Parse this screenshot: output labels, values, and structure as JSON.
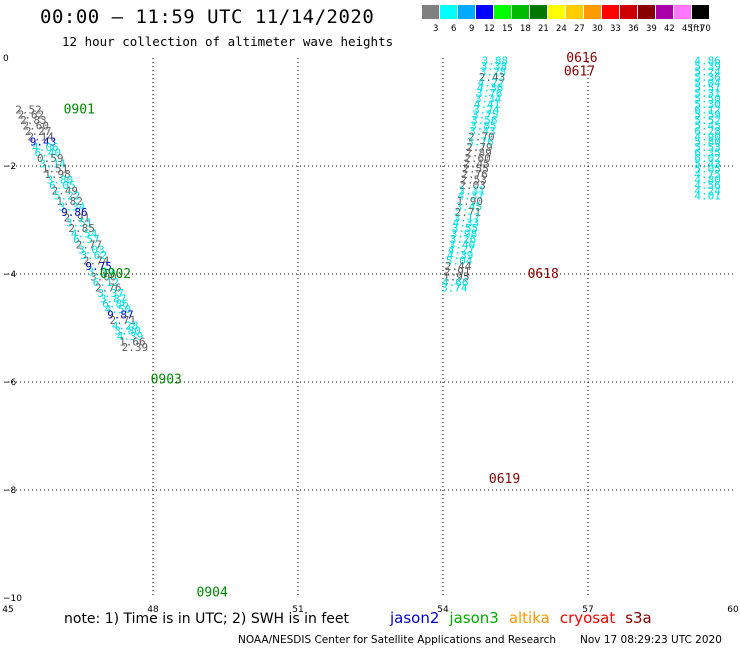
{
  "header": {
    "title": "00:00 – 11:59 UTC 11/14/2020",
    "subtitle": "12 hour collection of altimeter wave heights"
  },
  "colorbar": {
    "unit": "(ft)",
    "stops": [
      {
        "label": "3",
        "color": "#808080"
      },
      {
        "label": "6",
        "color": "#00ffff"
      },
      {
        "label": "9",
        "color": "#00aaff"
      },
      {
        "label": "12",
        "color": "#0000ff"
      },
      {
        "label": "15",
        "color": "#00ff00"
      },
      {
        "label": "18",
        "color": "#00bb00"
      },
      {
        "label": "21",
        "color": "#007700"
      },
      {
        "label": "24",
        "color": "#ffff00"
      },
      {
        "label": "27",
        "color": "#ffcc00"
      },
      {
        "label": "30",
        "color": "#ff9900"
      },
      {
        "label": "33",
        "color": "#ff0000"
      },
      {
        "label": "36",
        "color": "#cc0000"
      },
      {
        "label": "39",
        "color": "#880000"
      },
      {
        "label": "42",
        "color": "#aa00aa"
      },
      {
        "label": "45",
        "color": "#ff77ff"
      },
      {
        "label": "70",
        "color": "#000000"
      }
    ]
  },
  "footer": {
    "note": "note:  1) Time is in UTC;  2) SWH is in feet",
    "satellites": [
      {
        "name": "jason2",
        "color": "#0000cc"
      },
      {
        "name": "jason3",
        "color": "#00aa00"
      },
      {
        "name": "altika",
        "color": "#ff9900"
      },
      {
        "name": "cryosat",
        "color": "#ff0000"
      },
      {
        "name": "s3a",
        "color": "#880000"
      }
    ],
    "credit": "NOAA/NESDIS Center for Satellite Applications and Research",
    "stamp": "Nov 17 08:29:23 UTC 2020"
  },
  "chart_data": {
    "type": "scatter",
    "title": "00:00 – 11:59 UTC 11/14/2020",
    "subtitle": "12 hour collection of altimeter wave heights",
    "xlabel": "",
    "ylabel": "",
    "xlim": [
      45,
      60
    ],
    "ylim": [
      -10,
      0
    ],
    "x_ticks": [
      "45",
      "48",
      "51",
      "54",
      "57",
      "60"
    ],
    "y_ticks": [
      "0",
      "−2",
      "−4",
      "−6",
      "−8",
      "−10"
    ],
    "grid": true,
    "legend": "bottom",
    "units": "ft",
    "colors": {
      "gray": "#606060",
      "cyan": "#00e0e0",
      "blue": "#0000cc",
      "green": "#008800",
      "darkred": "#880000"
    },
    "time_labels": [
      {
        "text": "0901",
        "lon": 46.15,
        "lat": -0.95,
        "color": "green"
      },
      {
        "text": "0902",
        "lon": 46.9,
        "lat": -4.0,
        "color": "green"
      },
      {
        "text": "0903",
        "lon": 47.95,
        "lat": -5.95,
        "color": "green"
      },
      {
        "text": "0904",
        "lon": 48.9,
        "lat": -9.9,
        "color": "green"
      },
      {
        "text": "0616",
        "lon": 56.55,
        "lat": 0.0,
        "color": "darkred"
      },
      {
        "text": "0617",
        "lon": 56.5,
        "lat": -0.25,
        "color": "darkred"
      },
      {
        "text": "0618",
        "lon": 55.75,
        "lat": -4.0,
        "color": "darkred"
      },
      {
        "text": "0619",
        "lon": 54.95,
        "lat": -7.8,
        "color": "darkred"
      }
    ],
    "series": [
      {
        "name": "0901–0904",
        "points": [
          {
            "v": "2.52",
            "lon": 45.15,
            "lat": -0.95,
            "c": "gray"
          },
          {
            "v": "2.62",
            "lon": 45.2,
            "lat": -1.05,
            "c": "gray"
          },
          {
            "v": "2.83",
            "lon": 45.25,
            "lat": -1.15,
            "c": "gray"
          },
          {
            "v": "2.60",
            "lon": 45.3,
            "lat": -1.25,
            "c": "gray"
          },
          {
            "v": "2.27",
            "lon": 45.35,
            "lat": -1.35,
            "c": "gray"
          },
          {
            "v": "2.14",
            "lon": 45.4,
            "lat": -1.45,
            "c": "gray"
          },
          {
            "v": "9.43",
            "lon": 45.45,
            "lat": -1.55,
            "c": "blue"
          },
          {
            "v": "4.06",
            "lon": 45.5,
            "lat": -1.65,
            "c": "cyan"
          },
          {
            "v": "6.40",
            "lon": 45.55,
            "lat": -1.75,
            "c": "cyan"
          },
          {
            "v": "0.59",
            "lon": 45.6,
            "lat": -1.85,
            "c": "gray"
          },
          {
            "v": "3.14",
            "lon": 45.65,
            "lat": -1.95,
            "c": "cyan"
          },
          {
            "v": "1.51",
            "lon": 45.7,
            "lat": -2.05,
            "c": "gray"
          },
          {
            "v": "1.98",
            "lon": 45.75,
            "lat": -2.15,
            "c": "gray"
          },
          {
            "v": "3.80",
            "lon": 45.8,
            "lat": -2.25,
            "c": "cyan"
          },
          {
            "v": "6.05",
            "lon": 45.85,
            "lat": -2.35,
            "c": "cyan"
          },
          {
            "v": "2.49",
            "lon": 45.9,
            "lat": -2.45,
            "c": "gray"
          },
          {
            "v": "5.22",
            "lon": 45.95,
            "lat": -2.55,
            "c": "cyan"
          },
          {
            "v": "1.82",
            "lon": 46.0,
            "lat": -2.65,
            "c": "gray"
          },
          {
            "v": "3.34",
            "lon": 46.05,
            "lat": -2.75,
            "c": "cyan"
          },
          {
            "v": "9.86",
            "lon": 46.1,
            "lat": -2.85,
            "c": "blue"
          },
          {
            "v": "2.91",
            "lon": 46.15,
            "lat": -2.95,
            "c": "gray"
          },
          {
            "v": "3.51",
            "lon": 46.2,
            "lat": -3.05,
            "c": "cyan"
          },
          {
            "v": "2.85",
            "lon": 46.25,
            "lat": -3.15,
            "c": "gray"
          },
          {
            "v": "4.54",
            "lon": 46.3,
            "lat": -3.25,
            "c": "cyan"
          },
          {
            "v": "6.57",
            "lon": 46.35,
            "lat": -3.35,
            "c": "cyan"
          },
          {
            "v": "2.77",
            "lon": 46.4,
            "lat": -3.45,
            "c": "gray"
          },
          {
            "v": "3.03",
            "lon": 46.45,
            "lat": -3.55,
            "c": "cyan"
          },
          {
            "v": "3.62",
            "lon": 46.5,
            "lat": -3.65,
            "c": "cyan"
          },
          {
            "v": "2.74",
            "lon": 46.55,
            "lat": -3.75,
            "c": "gray"
          },
          {
            "v": "9.75",
            "lon": 46.6,
            "lat": -3.85,
            "c": "blue"
          },
          {
            "v": "3.39",
            "lon": 46.65,
            "lat": -3.95,
            "c": "cyan"
          },
          {
            "v": "3.00",
            "lon": 46.7,
            "lat": -4.05,
            "c": "gray"
          },
          {
            "v": "6.12",
            "lon": 46.75,
            "lat": -4.15,
            "c": "cyan"
          },
          {
            "v": "2.76",
            "lon": 46.8,
            "lat": -4.25,
            "c": "gray"
          },
          {
            "v": "3.37",
            "lon": 46.85,
            "lat": -4.35,
            "c": "cyan"
          },
          {
            "v": "3.87",
            "lon": 46.9,
            "lat": -4.45,
            "c": "cyan"
          },
          {
            "v": "6.86",
            "lon": 46.95,
            "lat": -4.55,
            "c": "cyan"
          },
          {
            "v": "4.50",
            "lon": 47.0,
            "lat": -4.65,
            "c": "cyan"
          },
          {
            "v": "9.87",
            "lon": 47.05,
            "lat": -4.75,
            "c": "blue"
          },
          {
            "v": "2.71",
            "lon": 47.1,
            "lat": -4.85,
            "c": "gray"
          },
          {
            "v": "4.28",
            "lon": 47.15,
            "lat": -4.95,
            "c": "cyan"
          },
          {
            "v": "3.80",
            "lon": 47.2,
            "lat": -5.05,
            "c": "cyan"
          },
          {
            "v": "4.39",
            "lon": 47.25,
            "lat": -5.15,
            "c": "cyan"
          },
          {
            "v": "1.66",
            "lon": 47.3,
            "lat": -5.25,
            "c": "gray"
          },
          {
            "v": "2.39",
            "lon": 47.35,
            "lat": -5.35,
            "c": "gray"
          }
        ]
      },
      {
        "name": "0616–0619",
        "points": [
          {
            "v": "3.88",
            "lon": 54.8,
            "lat": -0.05,
            "c": "cyan"
          },
          {
            "v": "3.38",
            "lon": 54.78,
            "lat": -0.15,
            "c": "cyan"
          },
          {
            "v": "3.28",
            "lon": 54.76,
            "lat": -0.25,
            "c": "cyan"
          },
          {
            "v": "2.43",
            "lon": 54.74,
            "lat": -0.35,
            "c": "gray"
          },
          {
            "v": "4.22",
            "lon": 54.72,
            "lat": -0.45,
            "c": "cyan"
          },
          {
            "v": "4.36",
            "lon": 54.7,
            "lat": -0.55,
            "c": "cyan"
          },
          {
            "v": "3.76",
            "lon": 54.68,
            "lat": -0.65,
            "c": "cyan"
          },
          {
            "v": "3.34",
            "lon": 54.66,
            "lat": -0.75,
            "c": "cyan"
          },
          {
            "v": "4.41",
            "lon": 54.64,
            "lat": -0.85,
            "c": "cyan"
          },
          {
            "v": "3.24",
            "lon": 54.62,
            "lat": -0.95,
            "c": "cyan"
          },
          {
            "v": "3.75",
            "lon": 54.6,
            "lat": -1.05,
            "c": "cyan"
          },
          {
            "v": "3.56",
            "lon": 54.58,
            "lat": -1.15,
            "c": "cyan"
          },
          {
            "v": "3.85",
            "lon": 54.56,
            "lat": -1.25,
            "c": "cyan"
          },
          {
            "v": "3.43",
            "lon": 54.54,
            "lat": -1.35,
            "c": "cyan"
          },
          {
            "v": "2.70",
            "lon": 54.52,
            "lat": -1.45,
            "c": "gray"
          },
          {
            "v": "3.76",
            "lon": 54.5,
            "lat": -1.55,
            "c": "cyan"
          },
          {
            "v": "2.79",
            "lon": 54.48,
            "lat": -1.65,
            "c": "gray"
          },
          {
            "v": "2.89",
            "lon": 54.46,
            "lat": -1.75,
            "c": "gray"
          },
          {
            "v": "2.60",
            "lon": 54.44,
            "lat": -1.85,
            "c": "gray"
          },
          {
            "v": "2.45",
            "lon": 54.42,
            "lat": -1.95,
            "c": "gray"
          },
          {
            "v": "2.55",
            "lon": 54.4,
            "lat": -2.05,
            "c": "gray"
          },
          {
            "v": "2.76",
            "lon": 54.38,
            "lat": -2.15,
            "c": "gray"
          },
          {
            "v": "2.53",
            "lon": 54.36,
            "lat": -2.25,
            "c": "gray"
          },
          {
            "v": "2.03",
            "lon": 54.34,
            "lat": -2.35,
            "c": "gray"
          },
          {
            "v": "3.31",
            "lon": 54.32,
            "lat": -2.45,
            "c": "cyan"
          },
          {
            "v": "4.37",
            "lon": 54.3,
            "lat": -2.55,
            "c": "cyan"
          },
          {
            "v": "1.90",
            "lon": 54.28,
            "lat": -2.65,
            "c": "gray"
          },
          {
            "v": "3.45",
            "lon": 54.26,
            "lat": -2.75,
            "c": "cyan"
          },
          {
            "v": "2.71",
            "lon": 54.24,
            "lat": -2.85,
            "c": "gray"
          },
          {
            "v": "3.17",
            "lon": 54.22,
            "lat": -2.95,
            "c": "cyan"
          },
          {
            "v": "4.33",
            "lon": 54.2,
            "lat": -3.05,
            "c": "cyan"
          },
          {
            "v": "3.55",
            "lon": 54.18,
            "lat": -3.15,
            "c": "cyan"
          },
          {
            "v": "3.98",
            "lon": 54.16,
            "lat": -3.25,
            "c": "cyan"
          },
          {
            "v": "3.26",
            "lon": 54.14,
            "lat": -3.35,
            "c": "cyan"
          },
          {
            "v": "3.40",
            "lon": 54.12,
            "lat": -3.45,
            "c": "cyan"
          },
          {
            "v": "4.27",
            "lon": 54.1,
            "lat": -3.55,
            "c": "cyan"
          },
          {
            "v": "4.39",
            "lon": 54.08,
            "lat": -3.65,
            "c": "cyan"
          },
          {
            "v": "5.04",
            "lon": 54.06,
            "lat": -3.75,
            "c": "cyan"
          },
          {
            "v": "2.44",
            "lon": 54.04,
            "lat": -3.85,
            "c": "gray"
          },
          {
            "v": "2.91",
            "lon": 54.02,
            "lat": -3.95,
            "c": "gray"
          },
          {
            "v": "1.95",
            "lon": 54.0,
            "lat": -4.05,
            "c": "gray"
          },
          {
            "v": "4.66",
            "lon": 53.98,
            "lat": -4.15,
            "c": "cyan"
          },
          {
            "v": "3.74",
            "lon": 53.96,
            "lat": -4.25,
            "c": "cyan"
          }
        ]
      },
      {
        "name": "right edge",
        "points": [
          {
            "v": "4.86",
            "lon": 59.2,
            "lat": -0.05,
            "c": "cyan"
          },
          {
            "v": "5.39",
            "lon": 59.2,
            "lat": -0.15,
            "c": "cyan"
          },
          {
            "v": "5.24",
            "lon": 59.2,
            "lat": -0.25,
            "c": "cyan"
          },
          {
            "v": "5.36",
            "lon": 59.2,
            "lat": -0.35,
            "c": "cyan"
          },
          {
            "v": "5.04",
            "lon": 59.2,
            "lat": -0.45,
            "c": "cyan"
          },
          {
            "v": "5.51",
            "lon": 59.2,
            "lat": -0.55,
            "c": "cyan"
          },
          {
            "v": "5.31",
            "lon": 59.2,
            "lat": -0.65,
            "c": "cyan"
          },
          {
            "v": "5.50",
            "lon": 59.2,
            "lat": -0.75,
            "c": "cyan"
          },
          {
            "v": "5.30",
            "lon": 59.2,
            "lat": -0.85,
            "c": "cyan"
          },
          {
            "v": "6.12",
            "lon": 59.2,
            "lat": -0.95,
            "c": "cyan"
          },
          {
            "v": "5.59",
            "lon": 59.2,
            "lat": -1.05,
            "c": "cyan"
          },
          {
            "v": "5.52",
            "lon": 59.2,
            "lat": -1.15,
            "c": "cyan"
          },
          {
            "v": "5.45",
            "lon": 59.2,
            "lat": -1.25,
            "c": "cyan"
          },
          {
            "v": "6.28",
            "lon": 59.2,
            "lat": -1.35,
            "c": "cyan"
          },
          {
            "v": "4.90",
            "lon": 59.2,
            "lat": -1.45,
            "c": "cyan"
          },
          {
            "v": "5.80",
            "lon": 59.2,
            "lat": -1.55,
            "c": "cyan"
          },
          {
            "v": "5.53",
            "lon": 59.2,
            "lat": -1.65,
            "c": "cyan"
          },
          {
            "v": "6.35",
            "lon": 59.2,
            "lat": -1.75,
            "c": "cyan"
          },
          {
            "v": "6.02",
            "lon": 59.2,
            "lat": -1.85,
            "c": "cyan"
          },
          {
            "v": "5.43",
            "lon": 59.2,
            "lat": -1.95,
            "c": "cyan"
          },
          {
            "v": "5.05",
            "lon": 59.2,
            "lat": -2.05,
            "c": "cyan"
          },
          {
            "v": "4.75",
            "lon": 59.2,
            "lat": -2.15,
            "c": "cyan"
          },
          {
            "v": "4.80",
            "lon": 59.2,
            "lat": -2.25,
            "c": "cyan"
          },
          {
            "v": "4.56",
            "lon": 59.2,
            "lat": -2.35,
            "c": "cyan"
          },
          {
            "v": "4.24",
            "lon": 59.2,
            "lat": -2.45,
            "c": "cyan"
          },
          {
            "v": "4.01",
            "lon": 59.2,
            "lat": -2.55,
            "c": "cyan"
          }
        ]
      }
    ]
  }
}
